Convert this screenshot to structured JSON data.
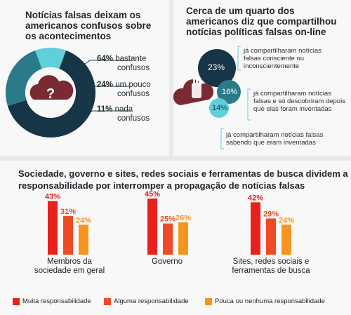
{
  "panel_left": {
    "title": "Notícias falsas deixam os americanos confusos sobre os acontecimentos",
    "icon": "question-cloud-icon",
    "slices": [
      {
        "pct": "64%",
        "value": 64,
        "line1": "bastante",
        "line2": "confusos",
        "color": "#163648"
      },
      {
        "pct": "24%",
        "value": 24,
        "line1": "um pouco",
        "line2": "confusos",
        "color": "#2a7a8a"
      },
      {
        "pct": "11%",
        "value": 11,
        "line1": "nada",
        "line2": "confusos",
        "color": "#5fcfdc"
      }
    ]
  },
  "panel_right": {
    "title": "Cerca de um quarto dos americanos diz que compartilhou notícias políticas falsas on-line",
    "icon": "hand-cloud-icon",
    "bubbles": [
      {
        "pct": "23%",
        "value": 23,
        "note": "já compartilharam notícias falsas consciente ou inconscientemente",
        "color": "#163648"
      },
      {
        "pct": "16%",
        "value": 16,
        "note": "já compartilharam notícias falsas e só descobriram depois que elas foram inventadas",
        "color": "#2a7a8a"
      },
      {
        "pct": "14%",
        "value": 14,
        "note": "já compartilharam notícias falsas sabendo que eram inventadas",
        "color": "#5fcfdc"
      }
    ]
  },
  "chart_data": {
    "type": "bar",
    "title": "Sociedade, governo e sites, redes sociais e ferramentas de busca dividem a responsabilidade por interromper a propagação de notícias falsas",
    "categories": [
      "Membros da sociedade em geral",
      "Governo",
      "Sites, redes sociais e ferramentas de busca"
    ],
    "category_lines": [
      [
        "Membros da",
        "sociedade em geral"
      ],
      [
        "Governo"
      ],
      [
        "Sites, redes sociais e",
        "ferramentas de busca"
      ]
    ],
    "series": [
      {
        "name": "Muita responsabilidade",
        "color": "#e8211d",
        "values": [
          43,
          45,
          42
        ]
      },
      {
        "name": "Alguma responsabilidade",
        "color": "#ef4a24",
        "values": [
          31,
          25,
          29
        ]
      },
      {
        "name": "Pouca ou nenhuma responsabilidade",
        "color": "#f7941d",
        "values": [
          24,
          26,
          24
        ]
      }
    ],
    "ylim": [
      0,
      45
    ],
    "legend": "bottom"
  }
}
